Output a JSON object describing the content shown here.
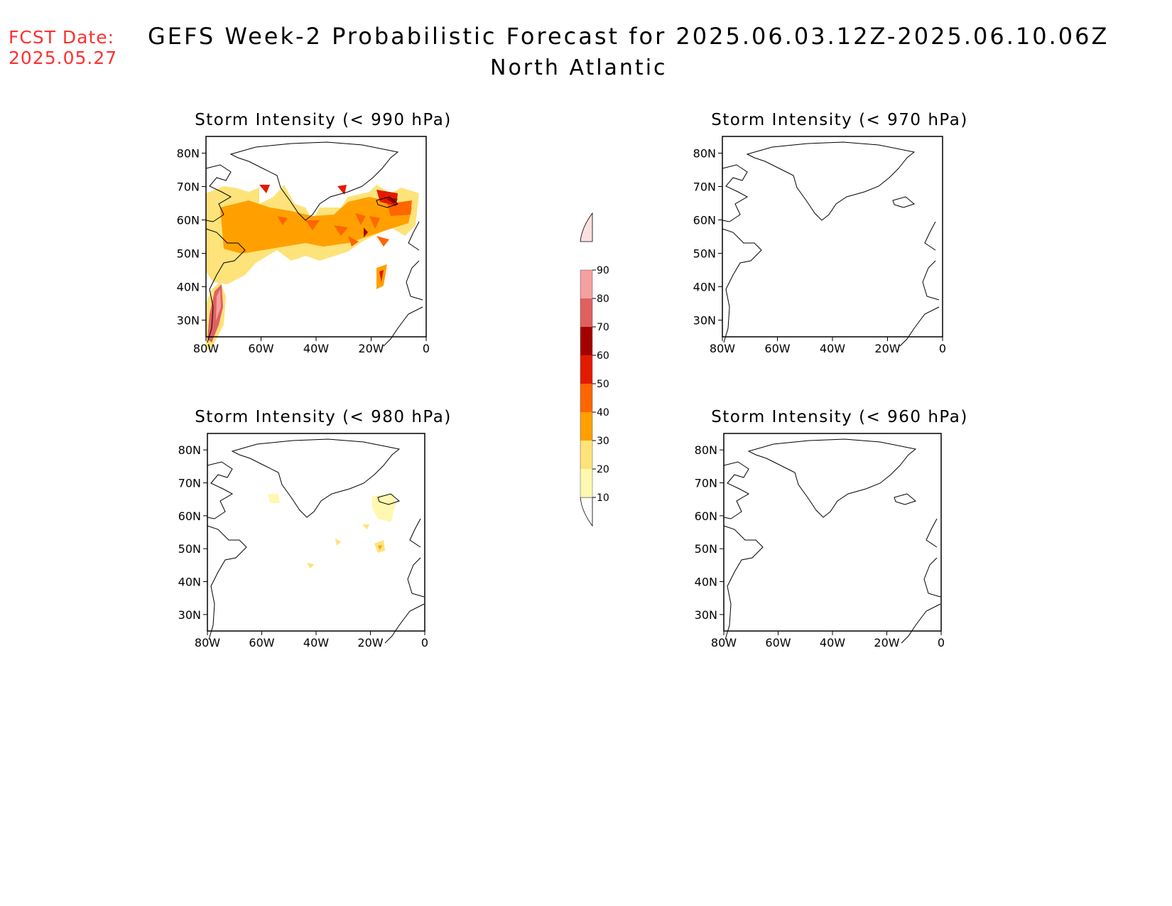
{
  "fcst": {
    "label": "FCST Date:",
    "date": "2025.05.27"
  },
  "title": "GEFS Week-2 Probabilistic Forecast for 2025.06.03.12Z-2025.06.10.06Z",
  "subtitle": "North Atlantic",
  "panels": [
    {
      "id": "p990",
      "title": "Storm Intensity (< 990 hPa)"
    },
    {
      "id": "p970",
      "title": "Storm Intensity (< 970 hPa)"
    },
    {
      "id": "p980",
      "title": "Storm Intensity (< 980 hPa)"
    },
    {
      "id": "p960",
      "title": "Storm Intensity (< 960 hPa)"
    }
  ],
  "axes": {
    "lon_labels": [
      "80W",
      "60W",
      "40W",
      "20W",
      "0"
    ],
    "lat_labels": [
      "80N",
      "70N",
      "60N",
      "50N",
      "40N",
      "30N"
    ]
  },
  "colorbar": {
    "levels": [
      "10",
      "20",
      "30",
      "40",
      "50",
      "60",
      "70",
      "80",
      "90"
    ],
    "colors": [
      "#fff8b0",
      "#fde37a",
      "#ffa000",
      "#ff6600",
      "#e31a00",
      "#a50000",
      "#e06060",
      "#f5a0a0",
      "#fde0e0"
    ]
  }
}
